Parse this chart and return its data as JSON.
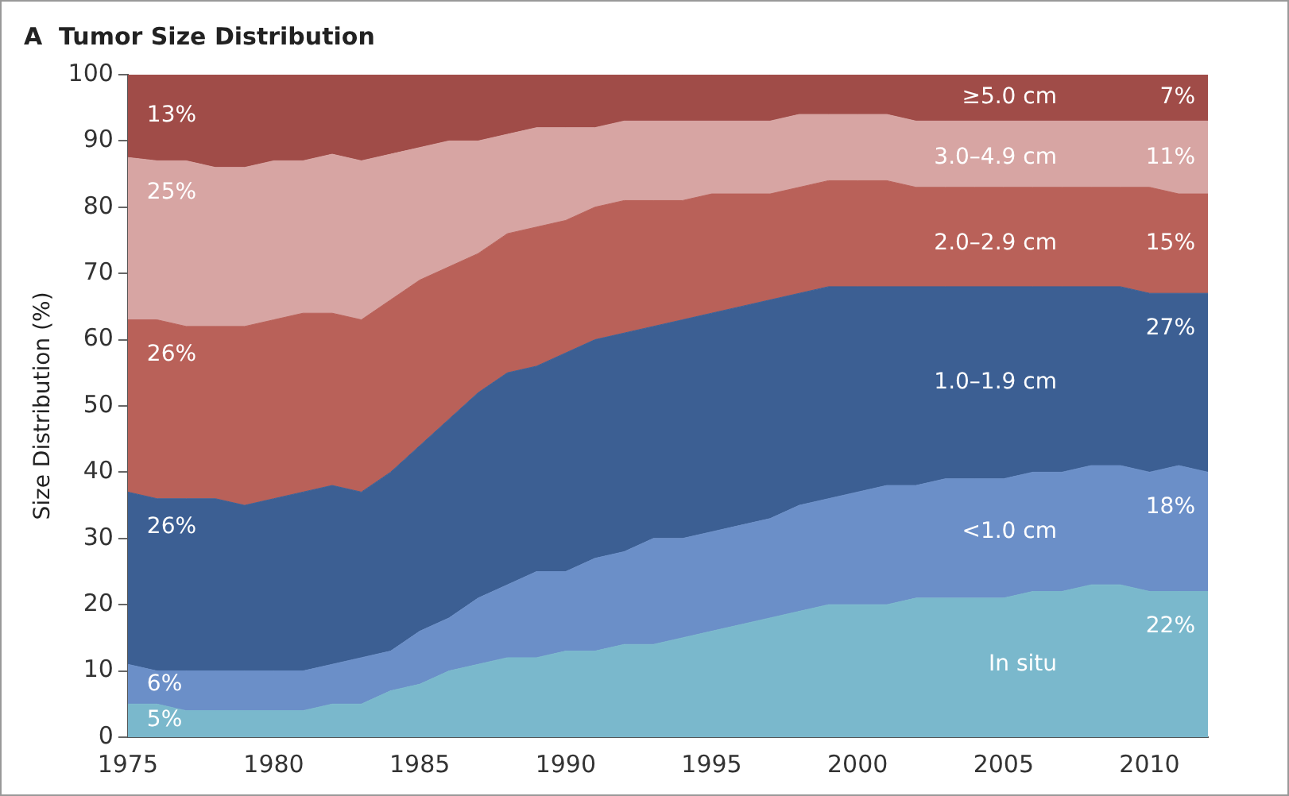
{
  "chart_data": {
    "type": "area",
    "stacked": true,
    "title": "A  Tumor Size Distribution",
    "ylabel": "Size Distribution (%)",
    "x": [
      1975,
      1976,
      1977,
      1978,
      1979,
      1980,
      1981,
      1982,
      1983,
      1984,
      1985,
      1986,
      1987,
      1988,
      1989,
      1990,
      1991,
      1992,
      1993,
      1994,
      1995,
      1996,
      1997,
      1998,
      1999,
      2000,
      2001,
      2002,
      2003,
      2004,
      2005,
      2006,
      2007,
      2008,
      2009,
      2010,
      2011,
      2012
    ],
    "xlim": [
      1975,
      2012
    ],
    "xticks": [
      1975,
      1980,
      1985,
      1990,
      1995,
      2000,
      2005,
      2010
    ],
    "ylim": [
      0,
      100
    ],
    "yticks": [
      0,
      10,
      20,
      30,
      40,
      50,
      60,
      70,
      80,
      90,
      100
    ],
    "grid": false,
    "legend": false,
    "series": [
      {
        "name": "In situ",
        "color": "#7ab8cc",
        "values": [
          5,
          5,
          4,
          4,
          4,
          4,
          4,
          5,
          5,
          7,
          8,
          10,
          11,
          12,
          12,
          13,
          13,
          14,
          14,
          15,
          16,
          17,
          18,
          19,
          20,
          20,
          20,
          21,
          21,
          21,
          21,
          22,
          22,
          23,
          23,
          22,
          22,
          22
        ],
        "value_labels": [
          "5%",
          null,
          null,
          null,
          null,
          null,
          null,
          null,
          null,
          null,
          null,
          null,
          null,
          null,
          null,
          null,
          null,
          null,
          null,
          null,
          null,
          null,
          null,
          null,
          null,
          null,
          null,
          null,
          null,
          null,
          null,
          null,
          null,
          null,
          null,
          null,
          null,
          "22%"
        ]
      },
      {
        "name": "<1.0 cm",
        "color": "#6b8fc8",
        "values": [
          6,
          5,
          6,
          6,
          6,
          6,
          6,
          6,
          7,
          6,
          8,
          8,
          10,
          11,
          13,
          12,
          14,
          14,
          16,
          15,
          15,
          15,
          15,
          16,
          16,
          17,
          18,
          17,
          18,
          18,
          18,
          18,
          18,
          18,
          18,
          18,
          19,
          18
        ],
        "value_labels": [
          "6%",
          null,
          null,
          null,
          null,
          null,
          null,
          null,
          null,
          null,
          null,
          null,
          null,
          null,
          null,
          null,
          null,
          null,
          null,
          null,
          null,
          null,
          null,
          null,
          null,
          null,
          null,
          null,
          null,
          null,
          null,
          null,
          null,
          null,
          null,
          null,
          null,
          "18%"
        ]
      },
      {
        "name": "1.0–1.9 cm",
        "color": "#3c5f93",
        "values": [
          26,
          26,
          26,
          26,
          25,
          26,
          27,
          27,
          25,
          27,
          28,
          30,
          31,
          32,
          31,
          33,
          33,
          33,
          32,
          33,
          33,
          33,
          33,
          32,
          32,
          31,
          30,
          30,
          29,
          29,
          29,
          28,
          28,
          27,
          27,
          27,
          26,
          27
        ],
        "value_labels": [
          "26%",
          null,
          null,
          null,
          null,
          null,
          null,
          null,
          null,
          null,
          null,
          null,
          null,
          null,
          null,
          null,
          null,
          null,
          null,
          null,
          null,
          null,
          null,
          null,
          null,
          null,
          null,
          null,
          null,
          null,
          null,
          null,
          null,
          null,
          null,
          null,
          null,
          "27%"
        ]
      },
      {
        "name": "2.0–2.9 cm",
        "color": "#b96159",
        "values": [
          26,
          27,
          26,
          26,
          27,
          27,
          27,
          26,
          26,
          26,
          25,
          23,
          21,
          21,
          21,
          20,
          20,
          20,
          19,
          18,
          18,
          17,
          16,
          16,
          16,
          16,
          16,
          15,
          15,
          15,
          15,
          15,
          15,
          15,
          15,
          16,
          15,
          15
        ],
        "value_labels": [
          "26%",
          null,
          null,
          null,
          null,
          null,
          null,
          null,
          null,
          null,
          null,
          null,
          null,
          null,
          null,
          null,
          null,
          null,
          null,
          null,
          null,
          null,
          null,
          null,
          null,
          null,
          null,
          null,
          null,
          null,
          null,
          null,
          null,
          null,
          null,
          null,
          null,
          "15%"
        ]
      },
      {
        "name": "3.0–4.9 cm",
        "color": "#d7a5a3",
        "values": [
          24.5,
          24,
          25,
          24,
          24,
          24,
          23,
          24,
          24,
          22,
          20,
          19,
          17,
          15,
          15,
          14,
          12,
          12,
          12,
          12,
          11,
          11,
          11,
          11,
          10,
          10,
          10,
          10,
          10,
          10,
          10,
          10,
          10,
          10,
          10,
          10,
          11,
          11
        ],
        "value_labels": [
          "25%",
          null,
          null,
          null,
          null,
          null,
          null,
          null,
          null,
          null,
          null,
          null,
          null,
          null,
          null,
          null,
          null,
          null,
          null,
          null,
          null,
          null,
          null,
          null,
          null,
          null,
          null,
          null,
          null,
          null,
          null,
          null,
          null,
          null,
          null,
          null,
          null,
          "11%"
        ]
      },
      {
        "name": "≥5.0 cm",
        "color": "#a04c48",
        "values": [
          12.5,
          13,
          13,
          14,
          14,
          13,
          13,
          12,
          13,
          12,
          11,
          10,
          10,
          9,
          8,
          8,
          8,
          7,
          7,
          7,
          7,
          7,
          7,
          6,
          6,
          6,
          6,
          7,
          7,
          7,
          7,
          7,
          7,
          7,
          7,
          7,
          7,
          7
        ],
        "value_labels": [
          "13%",
          null,
          null,
          null,
          null,
          null,
          null,
          null,
          null,
          null,
          null,
          null,
          null,
          null,
          null,
          null,
          null,
          null,
          null,
          null,
          null,
          null,
          null,
          null,
          null,
          null,
          null,
          null,
          null,
          null,
          null,
          null,
          null,
          null,
          null,
          null,
          null,
          "7%"
        ]
      }
    ]
  }
}
